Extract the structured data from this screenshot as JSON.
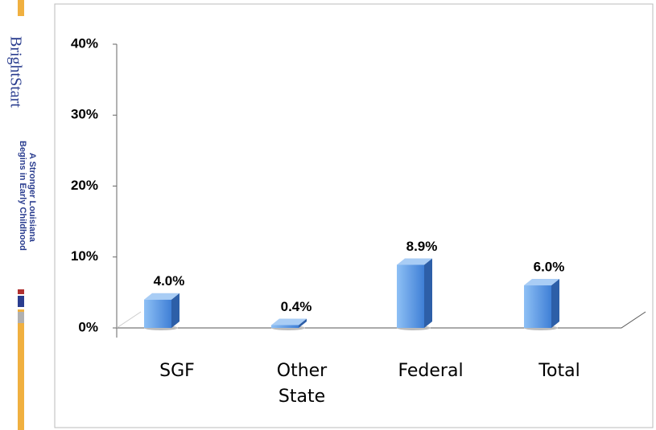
{
  "sidebar": {
    "brand": "BrightStart",
    "tagline": [
      "A Stronger Louisiana",
      "Begins in Early Childhood"
    ]
  },
  "chart_data": {
    "type": "bar3d",
    "categories": [
      "SGF",
      "Other State",
      "Federal",
      "Total"
    ],
    "values": [
      4.0,
      0.4,
      8.9,
      6.0
    ],
    "value_labels": [
      "4.0%",
      "0.4%",
      "8.9%",
      "6.0%"
    ],
    "color": "#4a8fe0",
    "ylim": [
      0,
      40
    ],
    "yticks": [
      {
        "value": 0,
        "label": "0%"
      },
      {
        "value": 10,
        "label": "10%"
      },
      {
        "value": 20,
        "label": "20%"
      },
      {
        "value": 30,
        "label": "30%"
      },
      {
        "value": 40,
        "label": "40%"
      }
    ]
  }
}
